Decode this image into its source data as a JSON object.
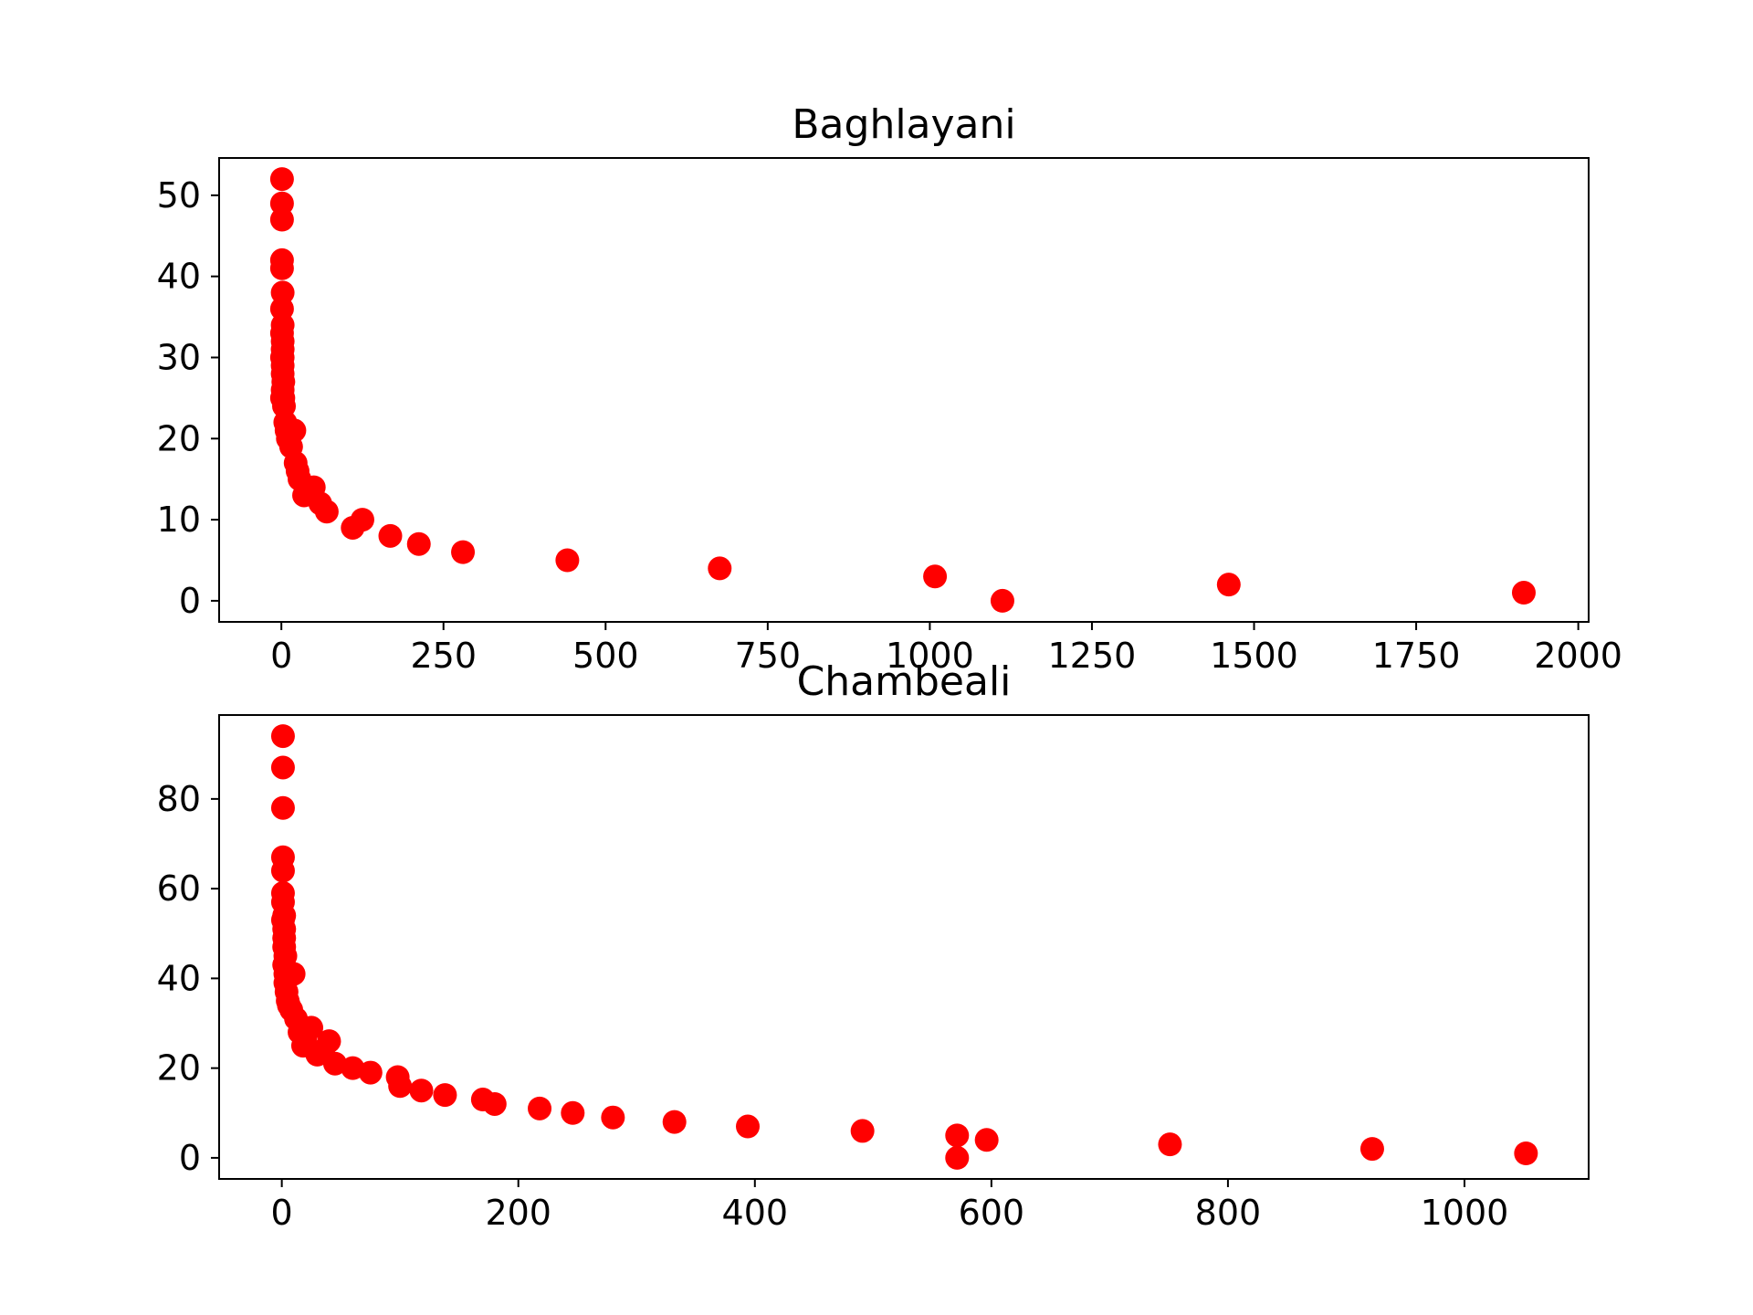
{
  "chart_data": [
    {
      "type": "scatter",
      "title": "Baghlayani",
      "xlabel": "",
      "ylabel": "",
      "xlim": [
        -96,
        2016
      ],
      "ylim": [
        -2.6,
        54.6
      ],
      "xticks": [
        0,
        250,
        500,
        750,
        1000,
        1250,
        1500,
        1750,
        2000
      ],
      "xtick_labels": [
        "0",
        "250",
        "500",
        "750",
        "1000",
        "1250",
        "1500",
        "1750",
        "2000"
      ],
      "yticks": [
        0,
        10,
        20,
        30,
        40,
        50
      ],
      "ytick_labels": [
        "0",
        "10",
        "20",
        "30",
        "40",
        "50"
      ],
      "grid": false,
      "marker_color": "#ff0000",
      "series": [
        {
          "x": [
            1,
            1,
            1,
            1,
            1,
            2,
            1,
            2,
            1,
            2,
            2,
            2,
            1,
            2,
            2,
            3,
            2,
            3,
            1,
            4,
            6,
            8,
            10,
            15,
            20,
            22,
            25,
            28,
            35,
            50,
            60,
            70,
            110,
            125,
            168,
            212,
            280,
            441,
            676,
            1008,
            1112,
            1461,
            1916
          ],
          "y": [
            52,
            49,
            47,
            42,
            41,
            38,
            36,
            34,
            33,
            32,
            31,
            30,
            30,
            29,
            28,
            27,
            26,
            25,
            25,
            24,
            22,
            21,
            20,
            19,
            21,
            17,
            16,
            15,
            13,
            14,
            12,
            11,
            9,
            10,
            8,
            7,
            6,
            5,
            4,
            3,
            0,
            2,
            1
          ]
        }
      ]
    },
    {
      "type": "scatter",
      "title": "Chambeali",
      "xlabel": "",
      "ylabel": "",
      "xlim": [
        -53,
        1105
      ],
      "ylim": [
        -4.7,
        98.7
      ],
      "xticks": [
        0,
        200,
        400,
        600,
        800,
        1000
      ],
      "xtick_labels": [
        "0",
        "200",
        "400",
        "600",
        "800",
        "1000"
      ],
      "yticks": [
        0,
        20,
        40,
        60,
        80
      ],
      "ytick_labels": [
        "0",
        "20",
        "40",
        "60",
        "80"
      ],
      "grid": false,
      "marker_color": "#ff0000",
      "series": [
        {
          "x": [
            1,
            1,
            1,
            1,
            1,
            1,
            1,
            2,
            1,
            2,
            2,
            2,
            3,
            2,
            3,
            3,
            4,
            5,
            6,
            8,
            10,
            12,
            15,
            18,
            20,
            25,
            30,
            35,
            40,
            45,
            60,
            75,
            98,
            100,
            118,
            138,
            170,
            180,
            218,
            246,
            280,
            332,
            394,
            491,
            571,
            571,
            596,
            751,
            922,
            1052
          ],
          "y": [
            94,
            87,
            78,
            67,
            64,
            59,
            57,
            54,
            53,
            51,
            49,
            47,
            45,
            43,
            41,
            39,
            37,
            35,
            34,
            33,
            41,
            31,
            28,
            25,
            27,
            29,
            23,
            24,
            26,
            21,
            20,
            19,
            18,
            16,
            15,
            14,
            13,
            12,
            11,
            10,
            9,
            8,
            7,
            6,
            5,
            0,
            4,
            3,
            2,
            1
          ]
        }
      ]
    }
  ]
}
